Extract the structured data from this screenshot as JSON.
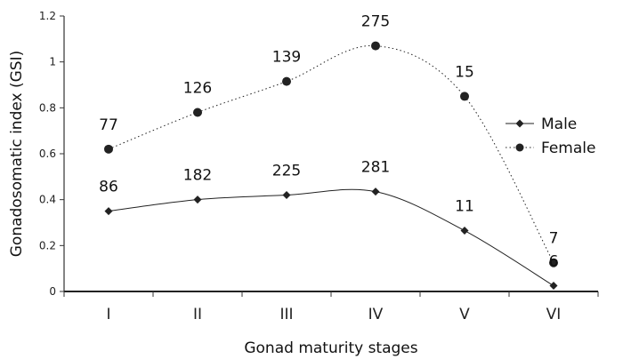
{
  "chart_data": {
    "type": "line",
    "categories": [
      "I",
      "II",
      "III",
      "IV",
      "V",
      "VI"
    ],
    "series": [
      {
        "name": "Male",
        "values": [
          0.35,
          0.4,
          0.42,
          0.435,
          0.265,
          0.025
        ],
        "labels": [
          "86",
          "182",
          "225",
          "281",
          "11",
          "6"
        ],
        "marker": "diamond",
        "line_style": "solid",
        "color": "#222222"
      },
      {
        "name": "Female",
        "values": [
          0.62,
          0.78,
          0.915,
          1.07,
          0.85,
          0.125
        ],
        "labels": [
          "77",
          "126",
          "139",
          "275",
          "15",
          "7"
        ],
        "marker": "circle",
        "line_style": "dotted",
        "color": "#222222"
      }
    ],
    "xlabel": "Gonad maturity stages",
    "ylabel": "Gonadosomatic index (GSI)",
    "ylim": [
      0,
      1.2
    ],
    "yticks": [
      "0",
      "0.2",
      "0.4",
      "0.6",
      "0.8",
      "1",
      "1.2"
    ],
    "grid": false,
    "legend": "right"
  }
}
